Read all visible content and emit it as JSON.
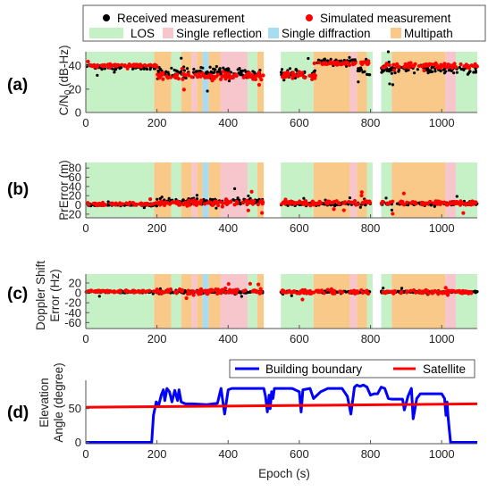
{
  "legend_top": {
    "markers": [
      {
        "label": "Received measurement",
        "color": "#000000"
      },
      {
        "label": "Simulated measurement",
        "color": "#ff0000"
      }
    ],
    "conditions": [
      {
        "label": "LOS",
        "color": "#c6f0c6"
      },
      {
        "label": "Single reflection",
        "color": "#f7c6cc"
      },
      {
        "label": "Single diffraction",
        "color": "#a8dcf2"
      },
      {
        "label": "Multipath",
        "color": "#f9c98a"
      }
    ]
  },
  "panel_labels": [
    "(a)",
    "(b)",
    "(c)",
    "(d)"
  ],
  "x_axis": {
    "ticks": [
      "0",
      "200",
      "400",
      "600",
      "800",
      "1000"
    ],
    "label": "Epoch (s)",
    "range": [
      0,
      1100
    ]
  },
  "condition_segments": [
    {
      "start": 0,
      "end": 192,
      "type": "LOS"
    },
    {
      "start": 192,
      "end": 240,
      "type": "Multipath"
    },
    {
      "start": 240,
      "end": 268,
      "type": "LOS"
    },
    {
      "start": 268,
      "end": 298,
      "type": "Multipath"
    },
    {
      "start": 298,
      "end": 312,
      "type": "Single reflection"
    },
    {
      "start": 312,
      "end": 328,
      "type": "Multipath"
    },
    {
      "start": 328,
      "end": 345,
      "type": "Single diffraction"
    },
    {
      "start": 345,
      "end": 378,
      "type": "Multipath"
    },
    {
      "start": 378,
      "end": 455,
      "type": "Single reflection"
    },
    {
      "start": 455,
      "end": 482,
      "type": "LOS"
    },
    {
      "start": 482,
      "end": 500,
      "type": "Multipath"
    },
    {
      "start": 500,
      "end": 548,
      "type": "gap"
    },
    {
      "start": 548,
      "end": 640,
      "type": "LOS"
    },
    {
      "start": 640,
      "end": 742,
      "type": "Multipath"
    },
    {
      "start": 742,
      "end": 762,
      "type": "Single reflection"
    },
    {
      "start": 762,
      "end": 790,
      "type": "Multipath"
    },
    {
      "start": 790,
      "end": 806,
      "type": "LOS"
    },
    {
      "start": 806,
      "end": 830,
      "type": "gap"
    },
    {
      "start": 830,
      "end": 860,
      "type": "LOS"
    },
    {
      "start": 860,
      "end": 1010,
      "type": "Multipath"
    },
    {
      "start": 1010,
      "end": 1040,
      "type": "Single reflection"
    },
    {
      "start": 1040,
      "end": 1100,
      "type": "LOS"
    }
  ],
  "chart_data": [
    {
      "panel": "(a)",
      "type": "scatter",
      "ylabel": "C/N0 (dB-Hz)",
      "ylabel_main": "C/N",
      "ylabel_sub": "0",
      "ylabel_unit": " (dB-Hz)",
      "yticks": [
        "0",
        "20",
        "40"
      ],
      "ylim": [
        0,
        52
      ],
      "xlim": [
        0,
        1100
      ],
      "series": [
        {
          "name": "Received measurement",
          "segments": [
            {
              "x0": 0,
              "x1": 200,
              "base": 39,
              "noise": 3
            },
            {
              "x0": 200,
              "x1": 500,
              "base": 34,
              "noise": 6
            },
            {
              "x0": 548,
              "x1": 650,
              "base": 33,
              "noise": 6
            },
            {
              "x0": 650,
              "x1": 760,
              "base": 44,
              "noise": 2
            },
            {
              "x0": 760,
              "x1": 800,
              "base": 36,
              "noise": 5
            },
            {
              "x0": 830,
              "x1": 1100,
              "base": 37,
              "noise": 6
            }
          ]
        },
        {
          "name": "Simulated measurement",
          "segments": [
            {
              "x0": 0,
              "x1": 200,
              "base": 40,
              "noise": 2
            },
            {
              "x0": 200,
              "x1": 500,
              "base": 31,
              "noise": 5
            },
            {
              "x0": 548,
              "x1": 650,
              "base": 32,
              "noise": 5
            },
            {
              "x0": 650,
              "x1": 800,
              "base": 42,
              "noise": 2
            },
            {
              "x0": 830,
              "x1": 1100,
              "base": 40,
              "noise": 3
            }
          ]
        }
      ]
    },
    {
      "panel": "(b)",
      "type": "scatter",
      "ylabel": "PrError (m)",
      "yticks": [
        "-20",
        "0",
        "20",
        "40",
        "60",
        "80"
      ],
      "ylim": [
        -28,
        92
      ],
      "xlim": [
        0,
        1100
      ],
      "series": [
        {
          "name": "Received measurement",
          "segments": [
            {
              "x0": 0,
              "x1": 200,
              "base": 0,
              "noise": 3
            },
            {
              "x0": 200,
              "x1": 500,
              "base": 8,
              "noise": 10
            },
            {
              "x0": 548,
              "x1": 800,
              "base": 2,
              "noise": 5
            },
            {
              "x0": 830,
              "x1": 1100,
              "base": 3,
              "noise": 6
            }
          ]
        },
        {
          "name": "Simulated measurement",
          "segments": [
            {
              "x0": 0,
              "x1": 200,
              "base": 2,
              "noise": 4
            },
            {
              "x0": 200,
              "x1": 500,
              "base": 5,
              "noise": 10
            },
            {
              "x0": 548,
              "x1": 800,
              "base": 5,
              "noise": 8
            },
            {
              "x0": 830,
              "x1": 1100,
              "base": 4,
              "noise": 8
            }
          ]
        }
      ]
    },
    {
      "panel": "(c)",
      "type": "scatter",
      "ylabel": "Doppler Shift Error (Hz)",
      "ylabel_line1": "Doppler Shift",
      "ylabel_line2": "Error (Hz)",
      "yticks": [
        "-60",
        "-40",
        "-20",
        "0",
        "20"
      ],
      "ylim": [
        -72,
        38
      ],
      "xlim": [
        0,
        1100
      ],
      "series": [
        {
          "name": "Received measurement",
          "segments": [
            {
              "x0": 0,
              "x1": 200,
              "base": 2,
              "noise": 3
            },
            {
              "x0": 200,
              "x1": 500,
              "base": 2,
              "noise": 4
            },
            {
              "x0": 548,
              "x1": 800,
              "base": 2,
              "noise": 3
            },
            {
              "x0": 830,
              "x1": 1100,
              "base": 2,
              "noise": 3
            }
          ]
        },
        {
          "name": "Simulated measurement",
          "segments": [
            {
              "x0": 0,
              "x1": 200,
              "base": 3,
              "noise": 3
            },
            {
              "x0": 200,
              "x1": 500,
              "base": 3,
              "noise": 8
            },
            {
              "x0": 548,
              "x1": 800,
              "base": 2,
              "noise": 6
            },
            {
              "x0": 830,
              "x1": 1100,
              "base": 2,
              "noise": 6
            }
          ]
        }
      ]
    },
    {
      "panel": "(d)",
      "type": "line",
      "ylabel": "Elevation Angle (degree)",
      "ylabel_line1": "Elevation",
      "ylabel_line2": "Angle (degree)",
      "xlabel": "Epoch (s)",
      "yticks": [
        "0",
        "50"
      ],
      "ylim": [
        -2,
        92
      ],
      "xlim": [
        0,
        1100
      ],
      "legend": [
        {
          "label": "Building boundary",
          "color": "#0000ff"
        },
        {
          "label": "Satellite",
          "color": "#ff0000"
        }
      ],
      "series": [
        {
          "name": "Building boundary",
          "color": "#0000ff",
          "x": [
            0,
            185,
            190,
            198,
            205,
            212,
            218,
            222,
            228,
            235,
            242,
            250,
            258,
            262,
            268,
            280,
            300,
            340,
            370,
            380,
            390,
            400,
            410,
            420,
            500,
            505,
            510,
            515,
            518,
            522,
            526,
            530,
            540,
            560,
            580,
            600,
            605,
            610,
            630,
            640,
            650,
            660,
            680,
            700,
            720,
            735,
            745,
            755,
            762,
            770,
            780,
            790,
            800,
            810,
            820,
            830,
            840,
            850,
            860,
            870,
            880,
            890,
            895,
            905,
            915,
            920,
            930,
            940,
            960,
            990,
            1000,
            1008,
            1012,
            1015,
            1018,
            1025,
            1100
          ],
          "y": [
            0,
            0,
            40,
            60,
            55,
            70,
            78,
            62,
            80,
            75,
            60,
            77,
            62,
            78,
            60,
            57,
            57,
            56,
            58,
            80,
            42,
            78,
            80,
            80,
            80,
            68,
            45,
            70,
            50,
            75,
            65,
            80,
            80,
            80,
            80,
            75,
            45,
            78,
            80,
            65,
            70,
            75,
            80,
            80,
            80,
            68,
            42,
            82,
            85,
            83,
            85,
            82,
            70,
            72,
            72,
            82,
            80,
            65,
            64,
            64,
            64,
            64,
            48,
            68,
            80,
            35,
            65,
            72,
            72,
            72,
            72,
            65,
            40,
            60,
            38,
            0,
            0
          ]
        },
        {
          "name": "Satellite",
          "color": "#ff0000",
          "x": [
            0,
            1100
          ],
          "y": [
            52,
            57
          ]
        }
      ]
    }
  ]
}
